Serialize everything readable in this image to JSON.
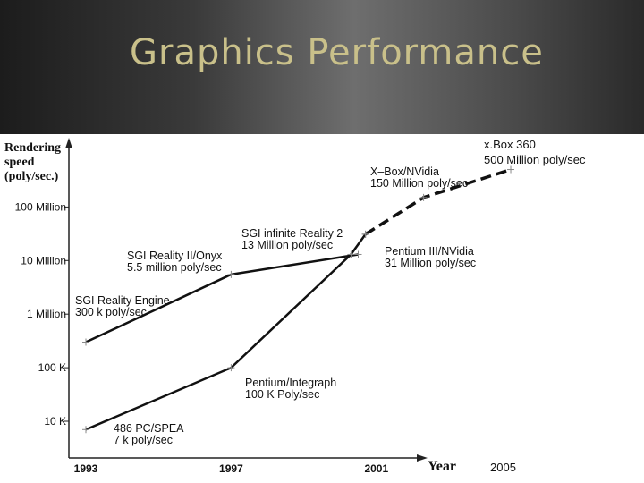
{
  "slide": {
    "title": "Graphics Performance"
  },
  "chart_data": {
    "type": "line",
    "ylabel": "Rendering\nspeed\n(poly/sec.)",
    "xlabel": "Year",
    "y_scale": "log",
    "yticks": [
      {
        "value": 10000,
        "label": "10 K"
      },
      {
        "value": 100000,
        "label": "100 K"
      },
      {
        "value": 1000000,
        "label": "1 Million"
      },
      {
        "value": 10000000,
        "label": "10 Million"
      },
      {
        "value": 100000000,
        "label": "100 Million"
      }
    ],
    "xticks": [
      {
        "value": 1993,
        "label": "1993"
      },
      {
        "value": 1997,
        "label": "1997"
      },
      {
        "value": 2001,
        "label": "2001"
      },
      {
        "value": 2005,
        "label": "2005"
      }
    ],
    "series": [
      {
        "line": "solid",
        "points": [
          {
            "year": 1993,
            "value": 300000,
            "label": "SGI Reality Engine\n300 k poly/sec"
          },
          {
            "year": 1997,
            "value": 5500000,
            "label": "SGI Reality II/Onyx\n5.5 million poly/sec"
          },
          {
            "year": 2000.5,
            "value": 13000000,
            "label": "SGI infinite Reality 2\n13 Million poly/sec"
          }
        ]
      },
      {
        "line": "solid",
        "points": [
          {
            "year": 1993,
            "value": 7000,
            "label": "486 PC/SPEA\n7 k poly/sec"
          },
          {
            "year": 1997,
            "value": 100000,
            "label": "Pentium/Integraph\n100 K Poly/sec"
          },
          {
            "year": 2000.3,
            "value": 13000000,
            "label": ""
          },
          {
            "year": 2000.7,
            "value": 31000000,
            "label": "Pentium III/NVidia\n31 Million poly/sec"
          }
        ]
      },
      {
        "line": "dashed",
        "points": [
          {
            "year": 2000.7,
            "value": 31000000,
            "label": ""
          },
          {
            "year": 2002.3,
            "value": 150000000,
            "label": "X–Box/NVidia\n150 Million poly/sec"
          },
          {
            "year": 2004.7,
            "value": 500000000,
            "label": ""
          }
        ]
      }
    ],
    "annotations": [
      {
        "text": "x.Box 360\n500 Million poly/sec"
      }
    ]
  }
}
